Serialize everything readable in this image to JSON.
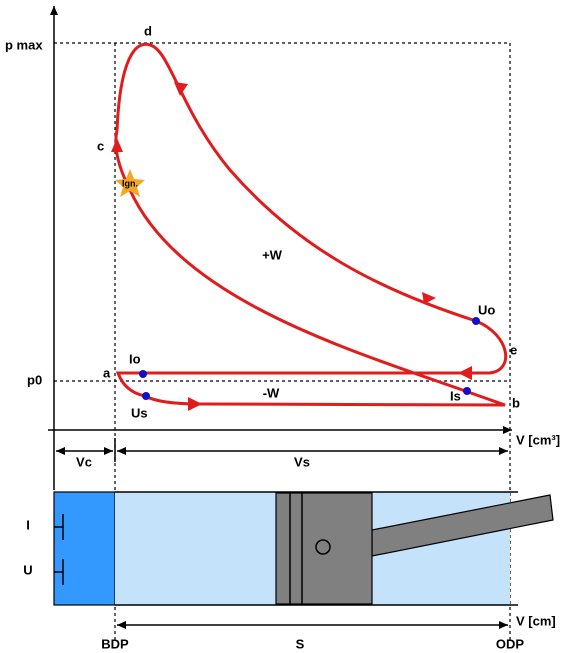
{
  "pv_diagram": {
    "pressure_labels": [
      "p max",
      "p0"
    ],
    "volume_axis_label": "V [cm³]",
    "cycle_points": [
      "a",
      "b",
      "c",
      "d",
      "e"
    ],
    "valve_events": [
      "Io",
      "Is",
      "Uo",
      "Us"
    ],
    "ignition": "Ign.",
    "work_labels": [
      "+W",
      "-W"
    ],
    "volume_labels": [
      "Vc",
      "Vs"
    ]
  },
  "cylinder": {
    "ports": [
      "I",
      "U"
    ],
    "stroke_axis_label": "V [cm]",
    "positions": [
      "BDP",
      "ODP"
    ],
    "stroke_label": "S"
  }
}
